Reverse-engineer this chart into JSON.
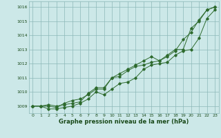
{
  "title": "Graphe pression niveau de la mer (hPa)",
  "xlabel": "Graphe pression niveau de la mer (hPa)",
  "x": [
    0,
    1,
    2,
    3,
    4,
    5,
    6,
    7,
    8,
    9,
    10,
    11,
    12,
    13,
    14,
    15,
    16,
    17,
    18,
    19,
    20,
    21,
    22,
    23
  ],
  "line1": [
    1009.0,
    1009.0,
    1009.1,
    1009.0,
    1009.1,
    1009.2,
    1009.3,
    1009.9,
    1010.3,
    1010.3,
    1011.0,
    1011.1,
    1011.5,
    1011.8,
    1011.9,
    1012.1,
    1012.2,
    1012.5,
    1012.9,
    1013.7,
    1014.2,
    1015.1,
    1015.8,
    1016.0
  ],
  "line2": [
    1009.0,
    1009.0,
    1008.8,
    1008.8,
    1008.9,
    1009.0,
    1009.2,
    1009.5,
    1010.0,
    1009.8,
    1010.2,
    1010.6,
    1010.7,
    1011.0,
    1011.6,
    1011.9,
    1012.0,
    1012.1,
    1012.6,
    1012.9,
    1013.0,
    1013.8,
    1015.2,
    1015.8
  ],
  "line3": [
    1009.0,
    1009.0,
    1009.0,
    1008.9,
    1009.2,
    1009.4,
    1009.5,
    1009.8,
    1010.2,
    1010.2,
    1011.0,
    1011.3,
    1011.6,
    1011.9,
    1012.2,
    1012.5,
    1012.2,
    1012.6,
    1013.0,
    1013.0,
    1014.5,
    1015.0,
    1015.8,
    1016.0
  ],
  "line_color": "#2d6a2d",
  "bg_color": "#cce8e8",
  "grid_color": "#8cb8b8",
  "text_color": "#1a4a1a",
  "ylim": [
    1008.5,
    1016.4
  ],
  "yticks": [
    1009,
    1010,
    1011,
    1012,
    1013,
    1014,
    1015,
    1016
  ],
  "xlim": [
    -0.5,
    23.5
  ],
  "xticks": [
    0,
    1,
    2,
    3,
    4,
    5,
    6,
    7,
    8,
    9,
    10,
    11,
    12,
    13,
    14,
    15,
    16,
    17,
    18,
    19,
    20,
    21,
    22,
    23
  ],
  "tick_fontsize": 4.5,
  "label_fontsize": 6.0,
  "marker": "D",
  "marker_size": 1.8,
  "line_width": 0.7
}
